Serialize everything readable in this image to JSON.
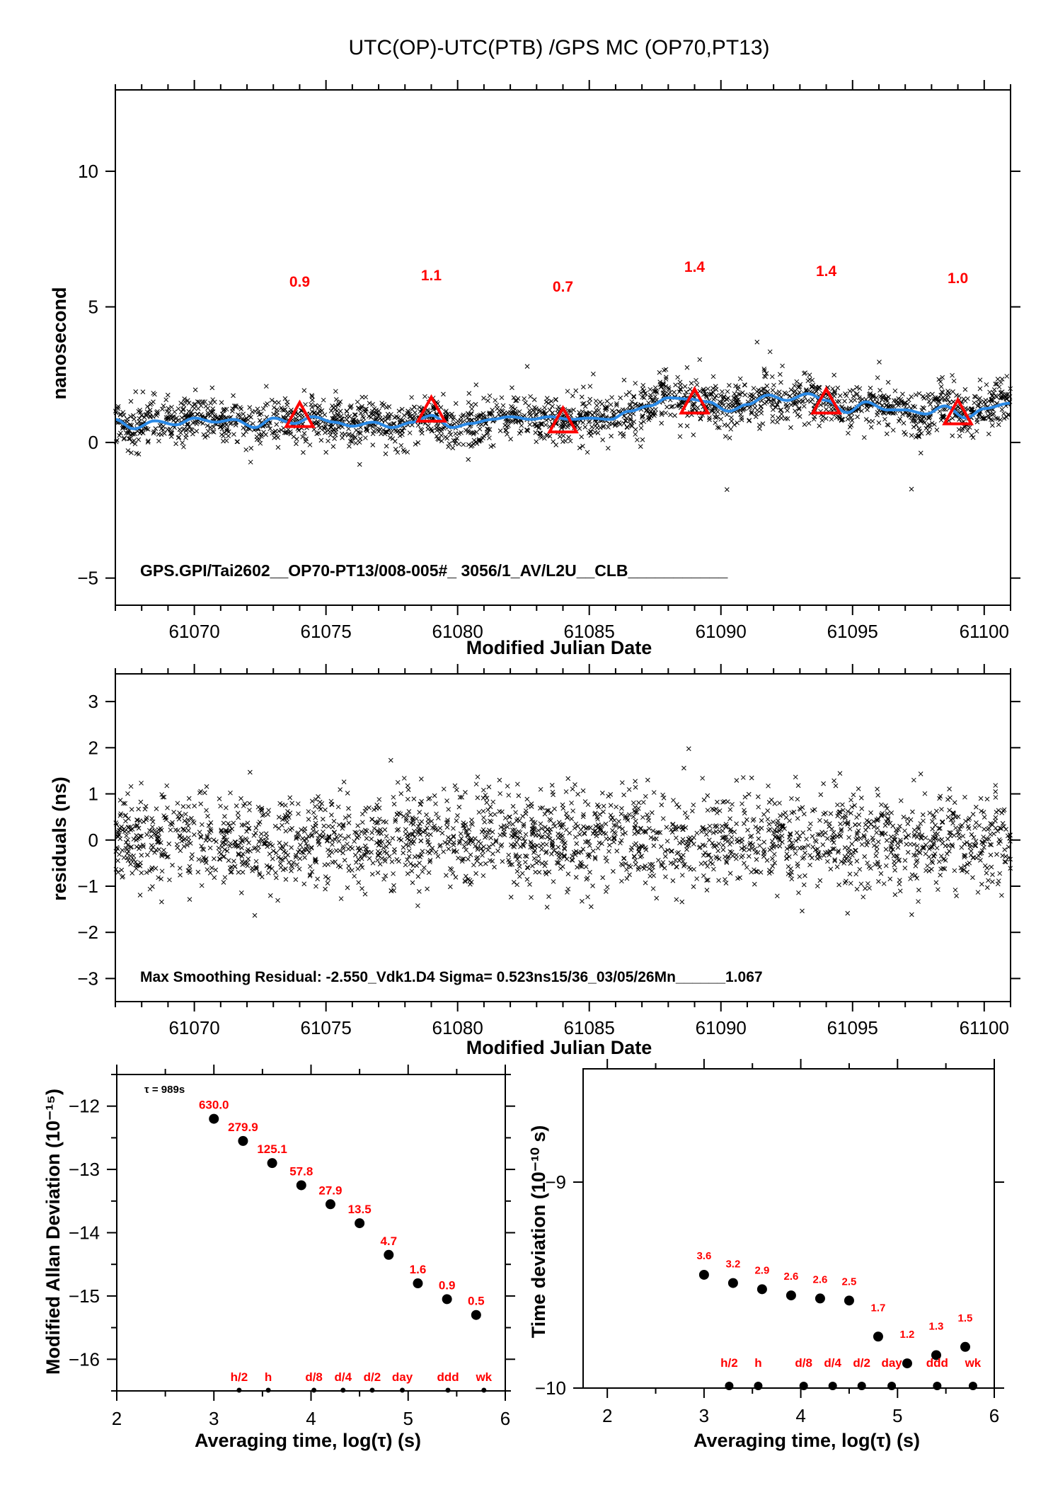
{
  "title": "UTC(OP)-UTC(PTB)  /GPS  MC  (OP70,PT13)",
  "colors": {
    "data_points": "#000000",
    "smooth_curve": "#2b8ae6",
    "marker": "#ff0000",
    "label": "#ff0000"
  },
  "chart_data": [
    {
      "id": "time-series",
      "type": "scatter",
      "xlabel": "Modified Julian Date",
      "ylabel": "nanosecond",
      "xlim": [
        61067,
        61101
      ],
      "ylim": [
        -6,
        13
      ],
      "xticks": [
        61070,
        61075,
        61080,
        61085,
        61090,
        61095,
        61100
      ],
      "yticks": [
        -5,
        0,
        5,
        10
      ],
      "annotation": "GPS.GPI/Tai2602__OP70-PT13/008-005#_  3056/1_AV/L2U__CLB___________",
      "scatter_note": "dense cloud of x markers, approx 0.5–2 ns scatter around the smoothed curve",
      "smooth_curve": {
        "x": [
          61067,
          61067.7,
          61068.5,
          61069.3,
          61070,
          61070.8,
          61071.5,
          61072.3,
          61073,
          61073.8,
          61074.5,
          61075.3,
          61076,
          61076.8,
          61077.5,
          61078.3,
          61079,
          61079.8,
          61080.5,
          61081.3,
          61082,
          61082.8,
          61083.5,
          61084.3,
          61085,
          61085.8,
          61086.5,
          61087.3,
          61088,
          61088.8,
          61089.5,
          61090.3,
          61091,
          61091.8,
          61092.5,
          61093.3,
          61094,
          61094.8,
          61095.5,
          61096.3,
          61097,
          61097.8,
          61098.5,
          61099.3,
          61100,
          61101
        ],
        "y": [
          0.85,
          0.5,
          0.8,
          0.65,
          0.9,
          0.75,
          0.85,
          0.55,
          0.9,
          0.7,
          0.95,
          0.75,
          0.6,
          0.75,
          0.55,
          0.75,
          1.0,
          0.55,
          0.7,
          0.85,
          0.95,
          0.85,
          0.95,
          0.85,
          0.9,
          0.85,
          1.15,
          1.35,
          1.65,
          1.6,
          1.5,
          1.15,
          1.4,
          1.75,
          1.55,
          1.8,
          1.55,
          1.1,
          1.5,
          1.2,
          1.2,
          1.05,
          1.35,
          0.9,
          1.25,
          1.45
        ]
      },
      "markers": {
        "x": [
          61074,
          61079,
          61084,
          61089,
          61094,
          61099
        ],
        "y": [
          0.9,
          1.1,
          0.7,
          1.4,
          1.4,
          1.0
        ],
        "labels": [
          "0.9",
          "1.1",
          "0.7",
          "1.4",
          "1.4",
          "1.0"
        ]
      }
    },
    {
      "id": "residuals",
      "type": "scatter",
      "xlabel": "Modified Julian Date",
      "ylabel": "residuals (ns)",
      "xlim": [
        61067,
        61101
      ],
      "ylim": [
        -3.5,
        3.6
      ],
      "xticks": [
        61070,
        61075,
        61080,
        61085,
        61090,
        61095,
        61100
      ],
      "yticks": [
        -3,
        -2,
        -1,
        0,
        1,
        2,
        3
      ],
      "annotation": "Max Smoothing Residual: -2.550_Vdk1.D4  Sigma= 0.523ns15/36_03/05/26Mn______1.067",
      "sigma_ns": 0.523,
      "max_residual_ns": -2.55
    },
    {
      "id": "mdev",
      "type": "scatter",
      "xlabel": "Averaging time, log(τ) (s)",
      "ylabel": "Modified Allan Deviation (10⁻¹⁵)",
      "xlim": [
        2,
        6
      ],
      "ylim": [
        -16.5,
        -11.5
      ],
      "xticks": [
        2,
        3,
        4,
        5,
        6
      ],
      "yticks": [
        -16,
        -15,
        -14,
        -13,
        -12
      ],
      "tau_note": "τ = 989s",
      "points": {
        "x": [
          3.0,
          3.3,
          3.6,
          3.9,
          4.2,
          4.5,
          4.8,
          5.1,
          5.4,
          5.7
        ],
        "y": [
          -12.2,
          -12.55,
          -12.9,
          -13.25,
          -13.55,
          -13.85,
          -14.35,
          -14.8,
          -15.05,
          -15.3
        ],
        "labels": [
          "630.0",
          "279.9",
          "125.1",
          "57.8",
          "27.9",
          "13.5",
          "4.7",
          "1.6",
          "0.9",
          "0.5"
        ]
      },
      "reference_marks": {
        "x": [
          3.26,
          3.56,
          4.03,
          4.33,
          4.63,
          4.94,
          5.41,
          5.78
        ],
        "labels": [
          "h/2",
          "h",
          "d/8",
          "d/4",
          "d/2",
          "day",
          "ddd",
          "wk"
        ]
      }
    },
    {
      "id": "tdev",
      "type": "scatter",
      "xlabel": "Averaging time, log(τ) (s)",
      "ylabel": "Time deviation (10⁻¹⁰ s)",
      "xlim": [
        1.75,
        6
      ],
      "ylim": [
        -10,
        -8.45
      ],
      "xticks": [
        2,
        3,
        4,
        5,
        6
      ],
      "yticks": [
        -10,
        -9
      ],
      "points": {
        "x": [
          3.0,
          3.3,
          3.6,
          3.9,
          4.2,
          4.5,
          4.8,
          5.1,
          5.4,
          5.7
        ],
        "y": [
          -9.45,
          -9.49,
          -9.52,
          -9.55,
          -9.565,
          -9.575,
          -9.75,
          -9.88,
          -9.84,
          -9.8
        ],
        "labels": [
          "3.6",
          "3.2",
          "2.9",
          "2.6",
          "2.6",
          "2.5",
          "1.7",
          "1.2",
          "1.3",
          "1.5"
        ]
      },
      "reference_marks": {
        "x": [
          3.26,
          3.56,
          4.03,
          4.33,
          4.63,
          4.94,
          5.41,
          5.78
        ],
        "labels": [
          "h/2",
          "h",
          "d/8",
          "d/4",
          "d/2",
          "day",
          "ddd",
          "wk"
        ]
      }
    }
  ]
}
